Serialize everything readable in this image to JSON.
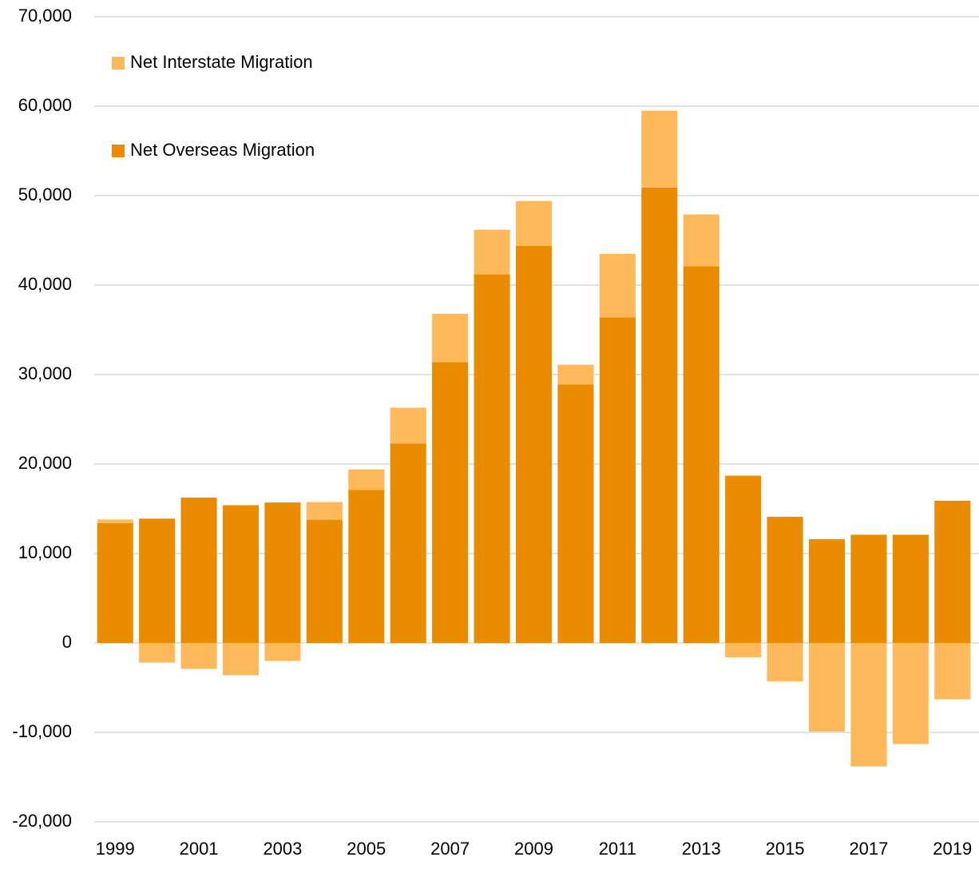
{
  "chart_data": {
    "type": "stacked_bar",
    "categories": [
      "1999",
      null,
      "2001",
      null,
      "2003",
      null,
      "2005",
      null,
      "2007",
      null,
      "2009",
      null,
      "2011",
      null,
      "2013",
      null,
      "2015",
      null,
      "2017",
      null,
      "2019"
    ],
    "series": [
      {
        "name": "Net Overseas Migration",
        "color": "#eb8c00",
        "values": [
          13400,
          13900,
          16250,
          15400,
          15700,
          13750,
          17100,
          22300,
          31400,
          41200,
          44400,
          28900,
          36400,
          50900,
          42100,
          18700,
          14100,
          11600,
          12100,
          12100,
          15900
        ]
      },
      {
        "name": "Net Interstate Migration",
        "color": "#ffb95a",
        "values": [
          400,
          -2200,
          -2900,
          -3600,
          -2000,
          2000,
          2300,
          4000,
          5400,
          5000,
          5000,
          2200,
          7100,
          8600,
          5800,
          -1600,
          -4300,
          -9900,
          -13800,
          -11300,
          -6300
        ]
      }
    ],
    "ylim": [
      -20000,
      70000
    ],
    "yticks": [
      {
        "value": -20000,
        "label": "-20,000"
      },
      {
        "value": -10000,
        "label": "-10,000"
      },
      0,
      {
        "value": 10000,
        "label": "10,000"
      },
      {
        "value": 20000,
        "label": "20,000"
      },
      {
        "value": 30000,
        "label": "30,000"
      },
      {
        "value": 40000,
        "label": "40,000"
      },
      {
        "value": 50000,
        "label": "50,000"
      },
      {
        "value": 60000,
        "label": "60,000"
      },
      {
        "value": 70000,
        "label": "70,000"
      }
    ],
    "grid": true,
    "legend": "top-left"
  }
}
